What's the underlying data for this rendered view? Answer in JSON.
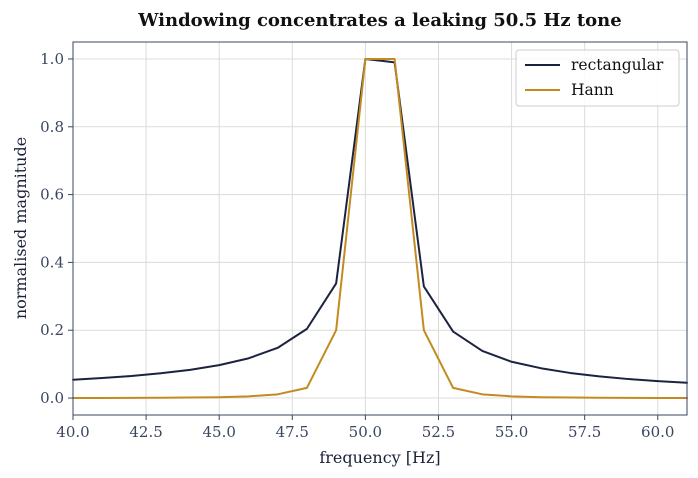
{
  "chart_data": {
    "type": "line",
    "title": "Windowing concentrates a leaking 50.5 Hz tone",
    "xlabel": "frequency  [Hz]",
    "ylabel": "normalised magnitude",
    "xlim": [
      40,
      61
    ],
    "ylim": [
      -0.05,
      1.05
    ],
    "xticks": [
      "40.0",
      "42.5",
      "45.0",
      "47.5",
      "50.0",
      "52.5",
      "55.0",
      "57.5",
      "60.0"
    ],
    "yticks": [
      "0.0",
      "0.2",
      "0.4",
      "0.6",
      "0.8",
      "1.0"
    ],
    "grid": true,
    "legend_position": "top-right",
    "x": [
      40,
      41,
      42,
      43,
      44,
      45,
      46,
      47,
      48,
      49,
      50,
      51,
      52,
      53,
      54,
      55,
      56,
      57,
      58,
      59,
      60,
      61
    ],
    "series": [
      {
        "name": "rectangular",
        "color": "#1b2340",
        "values": [
          0.054,
          0.059,
          0.065,
          0.073,
          0.083,
          0.097,
          0.117,
          0.148,
          0.204,
          0.338,
          1.0,
          0.99,
          0.329,
          0.196,
          0.139,
          0.107,
          0.088,
          0.074,
          0.064,
          0.056,
          0.05,
          0.045
        ]
      },
      {
        "name": "Hann",
        "color": "#c48a22",
        "values": [
          0.0,
          0.0,
          0.0005,
          0.001,
          0.0015,
          0.0025,
          0.005,
          0.011,
          0.03,
          0.2,
          1.0,
          1.0,
          0.2,
          0.03,
          0.011,
          0.005,
          0.0025,
          0.0015,
          0.001,
          0.0005,
          0.0,
          0.0
        ]
      }
    ]
  }
}
